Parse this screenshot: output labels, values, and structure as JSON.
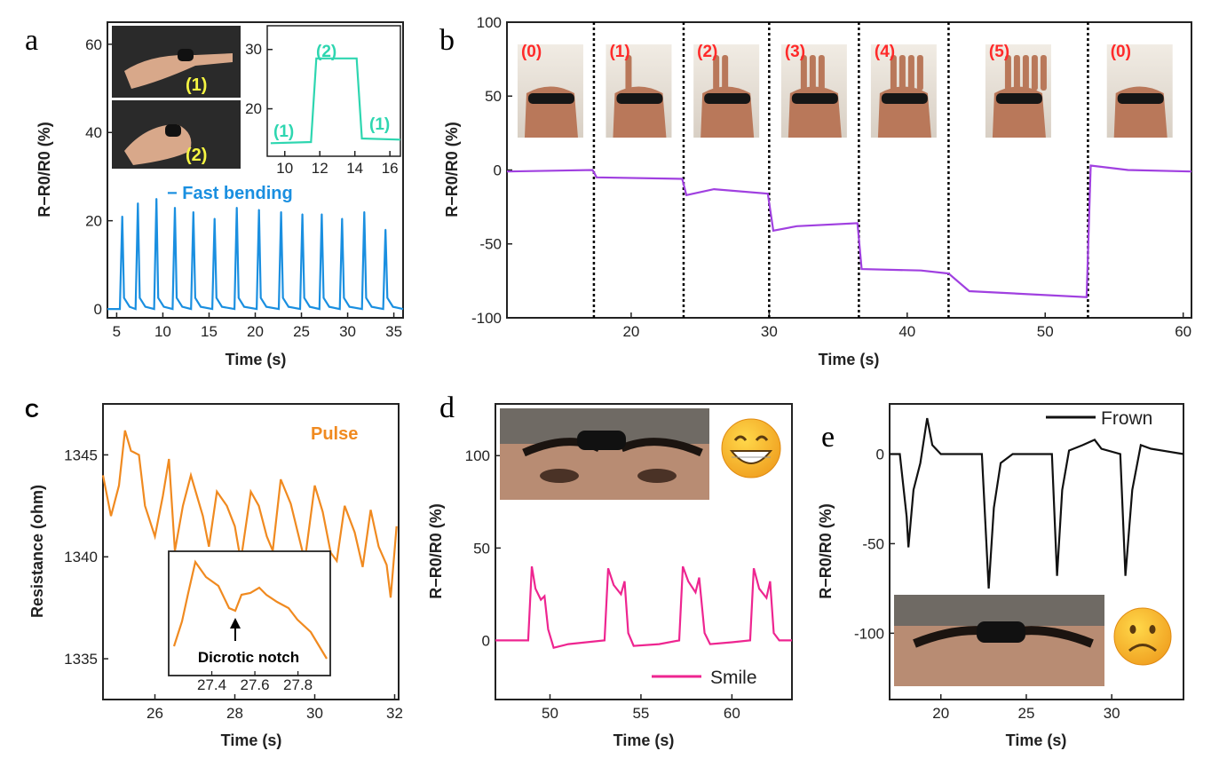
{
  "chart_data": [
    {
      "panel": "a",
      "type": "line",
      "xlabel": "Time (s)",
      "ylabel": "R−R0/R0 (%)",
      "xlim": [
        4,
        36
      ],
      "ylim": [
        -2,
        65
      ],
      "xticks": [
        5,
        10,
        15,
        20,
        25,
        30,
        35
      ],
      "yticks": [
        0,
        20,
        40,
        60
      ],
      "legend": "− Fast bending",
      "color": "#1a8fe0",
      "peaks_x": [
        5.6,
        7.3,
        9.3,
        11.3,
        13.3,
        15.6,
        18.0,
        20.4,
        22.8,
        25.1,
        27.2,
        29.4,
        31.8,
        34.1
      ],
      "peaks_y": [
        21,
        24,
        25,
        23,
        22,
        20.5,
        23,
        22.5,
        22,
        21.5,
        21.5,
        20.5,
        22,
        18
      ],
      "photo_labels": [
        "(1)",
        "(2)"
      ],
      "inset": {
        "xlim": [
          9,
          16.6
        ],
        "ylim": [
          12,
          34
        ],
        "xticks": [
          10,
          12,
          14,
          16
        ],
        "yticks": [
          20,
          30
        ],
        "points": [
          [
            9.2,
            14.2
          ],
          [
            11.5,
            14.4
          ],
          [
            11.8,
            28.5
          ],
          [
            14.1,
            28.5
          ],
          [
            14.4,
            15.0
          ],
          [
            16.6,
            14.8
          ]
        ],
        "labels": [
          "(1)",
          "(2)",
          "(1)"
        ],
        "color": "#2ed6b0"
      }
    },
    {
      "panel": "b",
      "type": "line",
      "xlabel": "Time (s)",
      "ylabel": "R−R0/R0 (%)",
      "xlim": [
        11,
        60.6
      ],
      "ylim": [
        -100,
        100
      ],
      "xticks": [
        20,
        30,
        40,
        50,
        60
      ],
      "yticks": [
        -100,
        -50,
        0,
        50,
        100
      ],
      "color": "#a040e0",
      "dividers": [
        17.3,
        23.8,
        30.0,
        36.5,
        43.0,
        53.1
      ],
      "states": [
        "(0)",
        "(1)",
        "(2)",
        "(3)",
        "(4)",
        "(5)",
        "(0)"
      ],
      "points": [
        [
          11,
          -1
        ],
        [
          17.2,
          0
        ],
        [
          17.5,
          -5
        ],
        [
          23.7,
          -6
        ],
        [
          24.0,
          -17
        ],
        [
          26,
          -13
        ],
        [
          29.9,
          -16
        ],
        [
          30.3,
          -41
        ],
        [
          32,
          -38
        ],
        [
          36.4,
          -36
        ],
        [
          36.7,
          -67
        ],
        [
          41,
          -68
        ],
        [
          43,
          -70
        ],
        [
          44.5,
          -82
        ],
        [
          53.0,
          -86
        ],
        [
          53.3,
          3
        ],
        [
          56,
          0
        ],
        [
          60.6,
          -1
        ]
      ]
    },
    {
      "panel": "C",
      "type": "line",
      "xlabel": "Time (s)",
      "ylabel": "Resistance (ohm)",
      "xlim": [
        24.7,
        32.1
      ],
      "ylim": [
        1333,
        1347.5
      ],
      "xticks": [
        26,
        28,
        30,
        32
      ],
      "yticks": [
        1335,
        1340,
        1345
      ],
      "legend": "Pulse",
      "color": "#f08a20",
      "points": [
        [
          24.7,
          1344
        ],
        [
          24.9,
          1342
        ],
        [
          25.1,
          1343.5
        ],
        [
          25.25,
          1346.2
        ],
        [
          25.4,
          1345.2
        ],
        [
          25.6,
          1345
        ],
        [
          25.75,
          1342.5
        ],
        [
          26.0,
          1341
        ],
        [
          26.2,
          1343
        ],
        [
          26.35,
          1344.8
        ],
        [
          26.5,
          1340.3
        ],
        [
          26.7,
          1342.5
        ],
        [
          26.9,
          1344
        ],
        [
          27.2,
          1342
        ],
        [
          27.35,
          1340.5
        ],
        [
          27.55,
          1343.2
        ],
        [
          27.8,
          1342.5
        ],
        [
          28.0,
          1341.5
        ],
        [
          28.15,
          1339.8
        ],
        [
          28.4,
          1343.2
        ],
        [
          28.6,
          1342.5
        ],
        [
          28.8,
          1341
        ],
        [
          28.95,
          1340.3
        ],
        [
          29.15,
          1343.8
        ],
        [
          29.4,
          1342.6
        ],
        [
          29.6,
          1341
        ],
        [
          29.75,
          1339.8
        ],
        [
          30.0,
          1343.5
        ],
        [
          30.2,
          1342.2
        ],
        [
          30.4,
          1340.2
        ],
        [
          30.55,
          1339.8
        ],
        [
          30.75,
          1342.5
        ],
        [
          31.0,
          1341.2
        ],
        [
          31.2,
          1339.5
        ],
        [
          31.4,
          1342.3
        ],
        [
          31.6,
          1340.5
        ],
        [
          31.8,
          1339.6
        ],
        [
          31.9,
          1338.0
        ],
        [
          32.05,
          1341.5
        ]
      ],
      "inset": {
        "xlim": [
          27.2,
          27.95
        ],
        "xticks": [
          27.4,
          27.6,
          27.8
        ],
        "annotation": "Dicrotic notch"
      }
    },
    {
      "panel": "d",
      "type": "line",
      "xlabel": "Time (s)",
      "ylabel": "R−R0/R0 (%)",
      "xlim": [
        47,
        63.3
      ],
      "ylim": [
        -32,
        128
      ],
      "xticks": [
        50,
        55,
        60
      ],
      "yticks": [
        0,
        50,
        100
      ],
      "legend": "Smile",
      "color": "#ee2590",
      "points": [
        [
          47,
          0
        ],
        [
          48.8,
          0
        ],
        [
          49.0,
          40
        ],
        [
          49.2,
          28
        ],
        [
          49.5,
          22
        ],
        [
          49.7,
          24
        ],
        [
          49.9,
          6
        ],
        [
          50.2,
          -4
        ],
        [
          51,
          -2
        ],
        [
          53.0,
          0
        ],
        [
          53.2,
          39
        ],
        [
          53.5,
          30
        ],
        [
          53.9,
          25
        ],
        [
          54.1,
          32
        ],
        [
          54.3,
          4
        ],
        [
          54.6,
          -3
        ],
        [
          56,
          -2
        ],
        [
          57.1,
          0
        ],
        [
          57.3,
          40
        ],
        [
          57.6,
          32
        ],
        [
          58.0,
          26
        ],
        [
          58.2,
          34
        ],
        [
          58.5,
          4
        ],
        [
          58.8,
          -2
        ],
        [
          60,
          -1
        ],
        [
          61.0,
          0
        ],
        [
          61.2,
          39
        ],
        [
          61.5,
          28
        ],
        [
          61.9,
          23
        ],
        [
          62.1,
          32
        ],
        [
          62.3,
          4
        ],
        [
          62.6,
          0
        ],
        [
          63.3,
          0
        ]
      ]
    },
    {
      "panel": "e",
      "type": "line",
      "xlabel": "Time (s)",
      "ylabel": "R−R0/R0 (%)",
      "xlim": [
        17,
        34.2
      ],
      "ylim": [
        -137,
        28
      ],
      "xticks": [
        20,
        25,
        30
      ],
      "yticks": [
        -100,
        -50,
        0
      ],
      "legend": "Frown",
      "color": "#111111",
      "points": [
        [
          17,
          0
        ],
        [
          17.6,
          0
        ],
        [
          18.0,
          -35
        ],
        [
          18.1,
          -52
        ],
        [
          18.4,
          -20
        ],
        [
          18.8,
          -5
        ],
        [
          19.2,
          20
        ],
        [
          19.5,
          5
        ],
        [
          20,
          0
        ],
        [
          22.4,
          0
        ],
        [
          22.8,
          -75
        ],
        [
          23.1,
          -30
        ],
        [
          23.5,
          -5
        ],
        [
          24.2,
          0
        ],
        [
          26.5,
          0
        ],
        [
          26.8,
          -68
        ],
        [
          27.1,
          -20
        ],
        [
          27.5,
          2
        ],
        [
          28.3,
          5
        ],
        [
          29.0,
          8
        ],
        [
          29.4,
          3
        ],
        [
          30.5,
          0
        ],
        [
          30.8,
          -68
        ],
        [
          31.2,
          -20
        ],
        [
          31.7,
          5
        ],
        [
          32.3,
          3
        ],
        [
          34.2,
          0
        ]
      ]
    }
  ],
  "panel_letters": {
    "a": "a",
    "b": "b",
    "c": "C",
    "d": "d",
    "e": "e"
  },
  "colors": {
    "bending": "#1a8fe0",
    "inset_a": "#2ed6b0",
    "fingers": "#a040e0",
    "pulse": "#f08a20",
    "smile": "#ee2590",
    "frown": "#111111",
    "state_label": "#ff2a2a",
    "photo_label": "#f5f542"
  }
}
